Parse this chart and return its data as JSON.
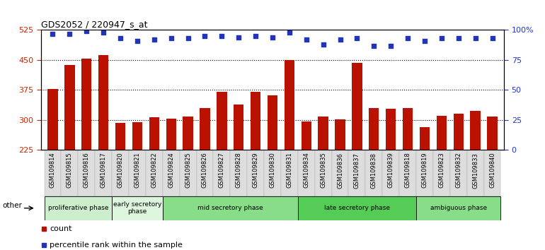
{
  "title": "GDS2052 / 220947_s_at",
  "samples": [
    "GSM109814",
    "GSM109815",
    "GSM109816",
    "GSM109817",
    "GSM109820",
    "GSM109821",
    "GSM109822",
    "GSM109824",
    "GSM109825",
    "GSM109826",
    "GSM109827",
    "GSM109828",
    "GSM109829",
    "GSM109830",
    "GSM109831",
    "GSM109834",
    "GSM109835",
    "GSM109836",
    "GSM109837",
    "GSM109838",
    "GSM109839",
    "GSM109818",
    "GSM109819",
    "GSM109823",
    "GSM109832",
    "GSM109833",
    "GSM109840"
  ],
  "bar_values": [
    378,
    437,
    453,
    463,
    292,
    295,
    307,
    303,
    308,
    330,
    370,
    338,
    370,
    362,
    450,
    297,
    308,
    302,
    443,
    330,
    328,
    330,
    282,
    310,
    315,
    322,
    308
  ],
  "dot_percentiles": [
    97,
    97,
    99,
    98,
    93,
    91,
    92,
    93,
    93,
    95,
    95,
    94,
    95,
    94,
    98,
    92,
    88,
    92,
    93,
    87,
    87,
    93,
    91,
    93,
    93,
    93,
    93
  ],
  "ylim_left": [
    225,
    525
  ],
  "ylim_right": [
    0,
    100
  ],
  "yticks_left": [
    225,
    300,
    375,
    450,
    525
  ],
  "yticks_right": [
    0,
    25,
    50,
    75,
    100
  ],
  "ytick_labels_right": [
    "0",
    "25",
    "50",
    "75",
    "100%"
  ],
  "bar_color": "#bb1100",
  "dot_color": "#2233bb",
  "tick_color_left": "#cc2200",
  "tick_color_right": "#2233cc",
  "phases": [
    {
      "label": "proliferative phase",
      "start": 0,
      "end": 4,
      "color": "#cceecc"
    },
    {
      "label": "early secretory\nphase",
      "start": 4,
      "end": 7,
      "color": "#ddf5dd"
    },
    {
      "label": "mid secretory phase",
      "start": 7,
      "end": 15,
      "color": "#88dd88"
    },
    {
      "label": "late secretory phase",
      "start": 15,
      "end": 22,
      "color": "#55cc55"
    },
    {
      "label": "ambiguous phase",
      "start": 22,
      "end": 27,
      "color": "#88dd88"
    }
  ],
  "xtick_bg": "#dddddd",
  "bar_baseline": 225
}
